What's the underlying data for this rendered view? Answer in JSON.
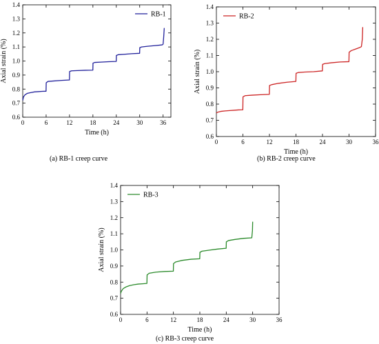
{
  "chart_data": [
    {
      "type": "line",
      "caption": "(a) RB-1 creep curve",
      "xlabel": "Time (h)",
      "ylabel": "Axial strain (%)",
      "xlim": [
        0,
        38
      ],
      "ylim": [
        0.6,
        1.4
      ],
      "xticks": [
        "0",
        "6",
        "12",
        "18",
        "24",
        "30",
        "36"
      ],
      "yticks": [
        "0.6",
        "0.7",
        "0.8",
        "0.9",
        "1.0",
        "1.1",
        "1.2",
        "1.3",
        "1.4"
      ],
      "legend_position": "top-right",
      "series": [
        {
          "name": "RB-1",
          "color": "#1f1f9a",
          "x": [
            0,
            0.2,
            0.6,
            1.2,
            2,
            3,
            4,
            5,
            5.98,
            6.02,
            6.5,
            8,
            10,
            11.98,
            12.02,
            12.5,
            14,
            16,
            17.98,
            18.02,
            18.5,
            20,
            22,
            23.98,
            24.02,
            24.5,
            26,
            28,
            29.98,
            30.02,
            30.5,
            32,
            34,
            35.8,
            36.0,
            36.15,
            36.3
          ],
          "values": [
            0.72,
            0.745,
            0.76,
            0.77,
            0.775,
            0.78,
            0.782,
            0.784,
            0.785,
            0.845,
            0.855,
            0.858,
            0.862,
            0.865,
            0.925,
            0.93,
            0.932,
            0.934,
            0.935,
            0.985,
            0.99,
            0.992,
            0.995,
            0.997,
            1.04,
            1.045,
            1.048,
            1.052,
            1.055,
            1.095,
            1.1,
            1.105,
            1.11,
            1.115,
            1.12,
            1.17,
            1.235
          ]
        }
      ]
    },
    {
      "type": "line",
      "caption": "(b) RB-2 creep curve",
      "xlabel": "Time (h)",
      "ylabel": "Axial strain (%)",
      "xlim": [
        0,
        36
      ],
      "ylim": [
        0.6,
        1.4
      ],
      "xticks": [
        "0",
        "6",
        "12",
        "18",
        "24",
        "30",
        "36"
      ],
      "yticks": [
        "0.6",
        "0.7",
        "0.8",
        "0.9",
        "1.0",
        "1.1",
        "1.2",
        "1.3",
        "1.4"
      ],
      "legend_position": "top-left",
      "series": [
        {
          "name": "RB-2",
          "color": "#cc2222",
          "x": [
            0,
            0.3,
            1,
            2,
            3,
            4,
            5,
            5.98,
            6.02,
            6.5,
            8,
            10,
            11.98,
            12.02,
            12.5,
            14,
            16,
            17.98,
            18.02,
            18.5,
            20,
            22,
            23.98,
            24.02,
            24.5,
            26,
            28,
            29.98,
            30.02,
            30.5,
            31.5,
            32.5,
            32.8,
            33.0,
            33.1
          ],
          "values": [
            0.745,
            0.75,
            0.755,
            0.758,
            0.76,
            0.762,
            0.764,
            0.765,
            0.845,
            0.852,
            0.855,
            0.858,
            0.86,
            0.915,
            0.92,
            0.928,
            0.935,
            0.94,
            0.99,
            0.995,
            0.998,
            1.0,
            1.005,
            1.045,
            1.05,
            1.055,
            1.06,
            1.062,
            1.12,
            1.13,
            1.14,
            1.15,
            1.155,
            1.2,
            1.275
          ]
        }
      ]
    },
    {
      "type": "line",
      "caption": "(c) RB-3 creep curve",
      "xlabel": "Time (h)",
      "ylabel": "Axial strain (%)",
      "xlim": [
        0,
        36
      ],
      "ylim": [
        0.6,
        1.4
      ],
      "xticks": [
        "0",
        "6",
        "12",
        "18",
        "24",
        "30",
        "36"
      ],
      "yticks": [
        "0.6",
        "0.7",
        "0.8",
        "0.9",
        "1.0",
        "1.1",
        "1.2",
        "1.3",
        "1.4"
      ],
      "legend_position": "top-left",
      "series": [
        {
          "name": "RB-3",
          "color": "#2a8a2a",
          "x": [
            0,
            0.2,
            0.6,
            1.2,
            2,
            3,
            4,
            5,
            5.98,
            6.02,
            6.5,
            8,
            10,
            11.98,
            12.02,
            12.5,
            14,
            16,
            17.98,
            18.02,
            18.5,
            20,
            22,
            23.98,
            24.02,
            24.5,
            26,
            28,
            29.8,
            29.95,
            30.0
          ],
          "values": [
            0.73,
            0.745,
            0.76,
            0.77,
            0.778,
            0.784,
            0.788,
            0.79,
            0.792,
            0.845,
            0.855,
            0.862,
            0.866,
            0.868,
            0.915,
            0.925,
            0.935,
            0.942,
            0.945,
            0.985,
            0.992,
            0.998,
            1.005,
            1.01,
            1.05,
            1.058,
            1.065,
            1.072,
            1.075,
            1.12,
            1.175
          ]
        }
      ]
    }
  ]
}
